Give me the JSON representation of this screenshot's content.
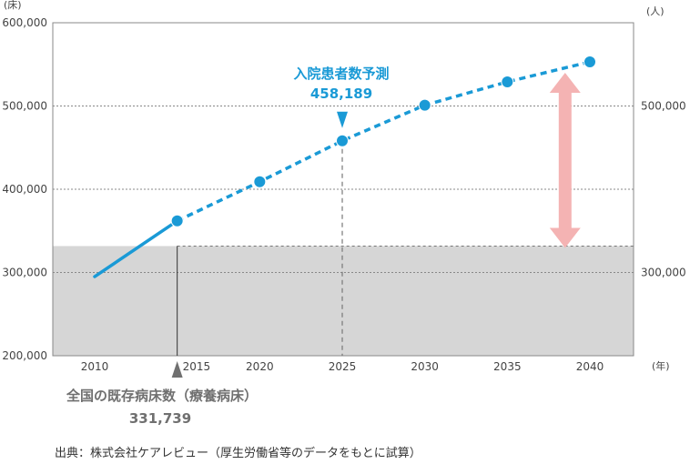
{
  "chart_data": {
    "type": "line",
    "x": [
      2010,
      2015,
      2020,
      2025,
      2030,
      2035,
      2040
    ],
    "x_tick_labels": [
      "2010",
      "2015",
      "2020",
      "2025",
      "2030",
      "2035",
      "2040"
    ],
    "xlabel": "(年)",
    "ylabel_left": "(床)",
    "ylabel_right": "(人)",
    "ylim": [
      200000,
      600000
    ],
    "y_ticks_left": [
      "600,000",
      "500,000",
      "400,000",
      "300,000",
      "200,000"
    ],
    "y_ticks_right": [
      "500,000",
      "300,000"
    ],
    "grid": "horizontal dotted",
    "series": [
      {
        "values": [
          295000,
          362000,
          409000,
          458189,
          501000,
          529000,
          553000
        ],
        "color": "#1a9ad6",
        "solid_until_x": 2015
      }
    ],
    "existing_beds": {
      "value": 331739,
      "from_x": 2015,
      "label": "全国の既存病床数（療養病床）",
      "value_label": "331,739",
      "fill": "#d6d6d6"
    },
    "projection_annotation": {
      "x": 2025,
      "label": "入院患者数予測",
      "value_label": "458,189"
    },
    "gap_arrow": {
      "x": 2038.5,
      "from": 331739,
      "to": 553000,
      "color": "#f4b3b3"
    },
    "source": "出典：株式会社ケアレビュー（厚生労働省等のデータをもとに試算）"
  }
}
